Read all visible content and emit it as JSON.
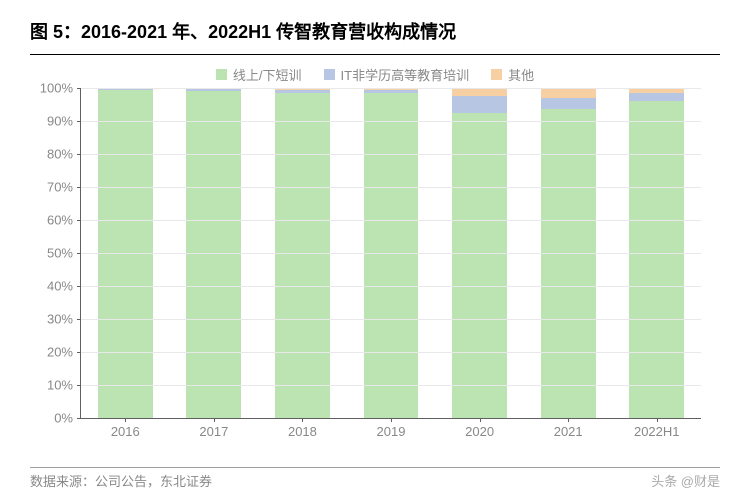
{
  "title": "图 5：2016-2021 年、2022H1 传智教育营收构成情况",
  "legend": [
    {
      "label": "线上/下短训",
      "color": "#bce3b2"
    },
    {
      "label": "IT非学历高等教育培训",
      "color": "#b7c7e3"
    },
    {
      "label": "其他",
      "color": "#f6cfa3"
    }
  ],
  "chart": {
    "type": "stacked-bar",
    "ylim": [
      0,
      100
    ],
    "ytick_step": 10,
    "ysuffix": "%",
    "grid_color": "#e8e8e8",
    "axis_color": "#606060",
    "axis_label_color": "#888888",
    "axis_label_fontsize": 13,
    "bar_width_ratio": 0.62,
    "categories": [
      "2016",
      "2017",
      "2018",
      "2019",
      "2020",
      "2021",
      "2022H1"
    ],
    "series": [
      {
        "name": "线上/下短训",
        "color": "#bce3b2",
        "values": [
          99.5,
          99.0,
          98.5,
          98.5,
          92.5,
          93.5,
          96.0
        ]
      },
      {
        "name": "IT非学历高等教育培训",
        "color": "#b7c7e3",
        "values": [
          0.5,
          0.7,
          1.0,
          1.0,
          5.0,
          3.5,
          2.5
        ]
      },
      {
        "name": "其他",
        "color": "#f6cfa3",
        "values": [
          0.0,
          0.3,
          0.5,
          0.5,
          2.5,
          3.0,
          1.5
        ]
      }
    ]
  },
  "source": "数据来源：公司公告，东北证券",
  "watermark": "头条 @财是"
}
